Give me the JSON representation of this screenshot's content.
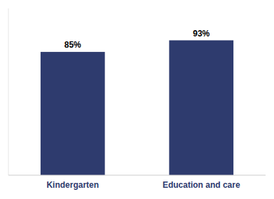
{
  "chart_data": {
    "type": "bar",
    "categories": [
      "Kindergarten",
      "Education and care"
    ],
    "values": [
      85,
      93
    ],
    "value_labels": [
      "85%",
      "93%"
    ],
    "color": "#2E3B6E",
    "ylim": [
      0,
      115
    ],
    "data_labels": true,
    "tick_labels": "x"
  }
}
